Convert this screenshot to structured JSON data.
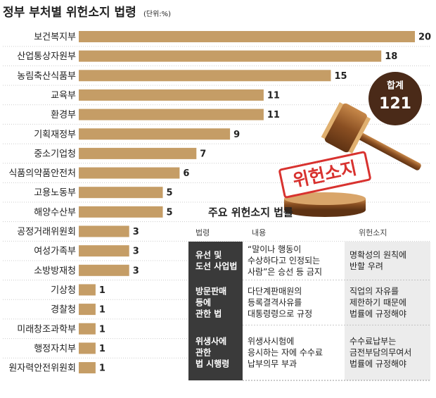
{
  "chart_data": {
    "type": "bar",
    "orientation": "horizontal",
    "title": "정부 부처별 위헌소지 법령",
    "unit": "(단위:%)",
    "categories": [
      "보건복지부",
      "산업통상자원부",
      "농림축산식품부",
      "교육부",
      "환경부",
      "기획재정부",
      "중소기업청",
      "식품의약품안전처",
      "고용노동부",
      "해양수산부",
      "공정거래위원회",
      "여성가족부",
      "소방방재청",
      "기상청",
      "경찰청",
      "미래창조과학부",
      "행정자치부",
      "원자력안전위원회"
    ],
    "values": [
      20,
      18,
      15,
      11,
      11,
      9,
      7,
      6,
      5,
      5,
      3,
      3,
      3,
      1,
      1,
      1,
      1,
      1
    ],
    "color": "#c59d66",
    "total_label": "합계",
    "total": 121,
    "stamp": "위헌소지"
  },
  "table": {
    "title": "주요 위헌소지 법률",
    "headers": [
      "법령",
      "내용",
      "위헌소지"
    ],
    "rows": [
      [
        [
          "유선 및",
          "도선 사업법"
        ],
        [
          "“말이나 행동이",
          "수상하다고 인정되는",
          "사람”은 승선 등 금지"
        ],
        [
          "명확성의 원칙에",
          "반할 우려"
        ]
      ],
      [
        [
          "방문판매",
          "등에",
          "관한 법"
        ],
        [
          "다단계판매원의",
          "등록결격사유를",
          "대통령령으로 규정"
        ],
        [
          "직업의 자유를",
          "제한하기 때문에",
          "법률에 규정해야"
        ]
      ],
      [
        [
          "위생사에",
          "관한",
          "법 시행령"
        ],
        [
          "위생사시험에",
          "응시하는 자에 수수료",
          "납부의무 부과"
        ],
        [
          "수수료납부는",
          "금전부담의무여서",
          "법률에 규정해야"
        ]
      ]
    ]
  }
}
